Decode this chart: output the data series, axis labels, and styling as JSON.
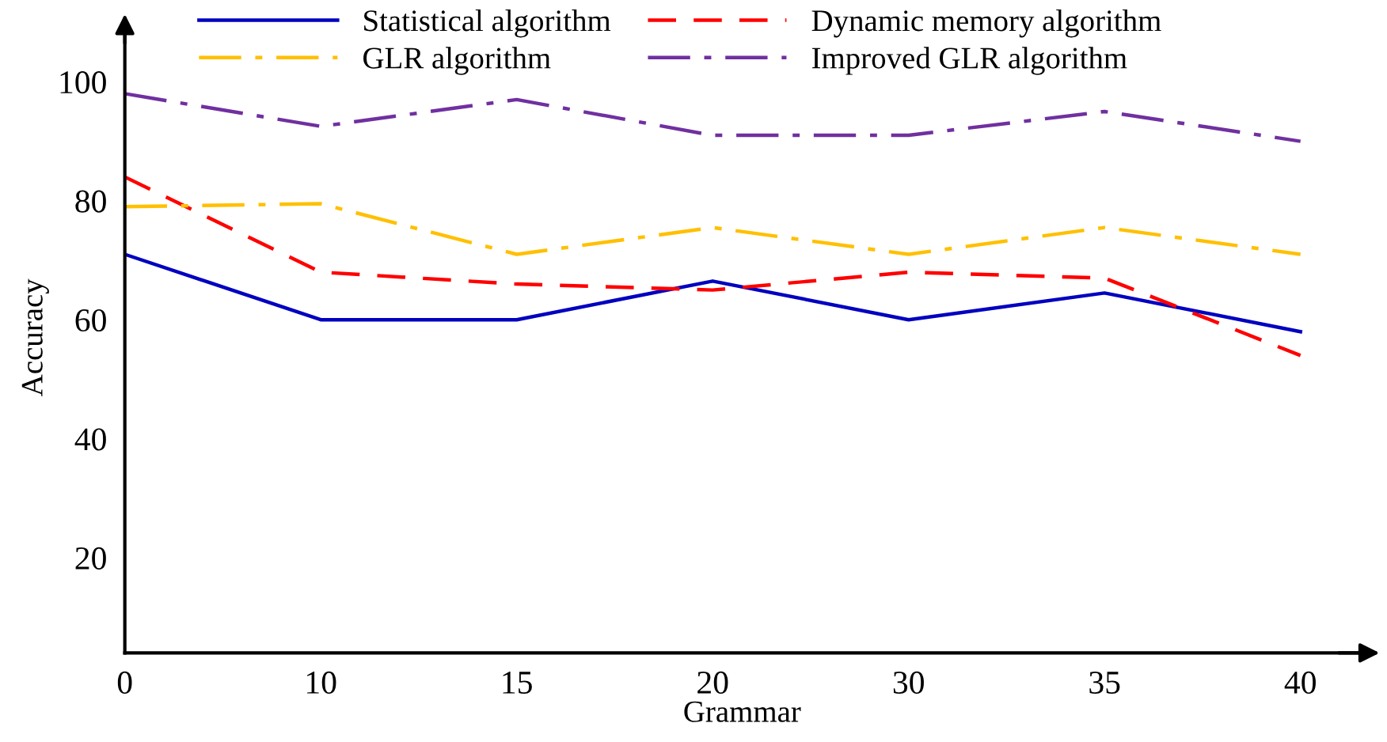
{
  "chart_data": {
    "type": "line",
    "xlabel": "Grammar",
    "ylabel": "Accuracy",
    "categories": [
      "0",
      "10",
      "15",
      "20",
      "30",
      "35",
      "40"
    ],
    "series": [
      {
        "name": "Statistical algorithm",
        "color": "#0000c0",
        "line_style": "solid",
        "values": [
          71,
          60,
          60,
          66.5,
          60,
          64.5,
          58
        ]
      },
      {
        "name": "Dynamic memory algorithm",
        "color": "#ff0000",
        "line_style": "dashed",
        "values": [
          84,
          68,
          66,
          65,
          68,
          67,
          54
        ]
      },
      {
        "name": "GLR algorithm",
        "color": "#ffc000",
        "line_style": "dashdot",
        "values": [
          79,
          79.5,
          71,
          75.5,
          71,
          75.5,
          71
        ]
      },
      {
        "name": "Improved GLR algorithm",
        "color": "#7030a0",
        "line_style": "dashdot",
        "values": [
          98,
          92.5,
          97,
          91,
          91,
          95,
          90
        ]
      }
    ],
    "ylim": [
      4,
      110
    ],
    "yticks": [
      20,
      40,
      60,
      80,
      100
    ],
    "grid": false,
    "legend": "top",
    "marker": "none"
  }
}
